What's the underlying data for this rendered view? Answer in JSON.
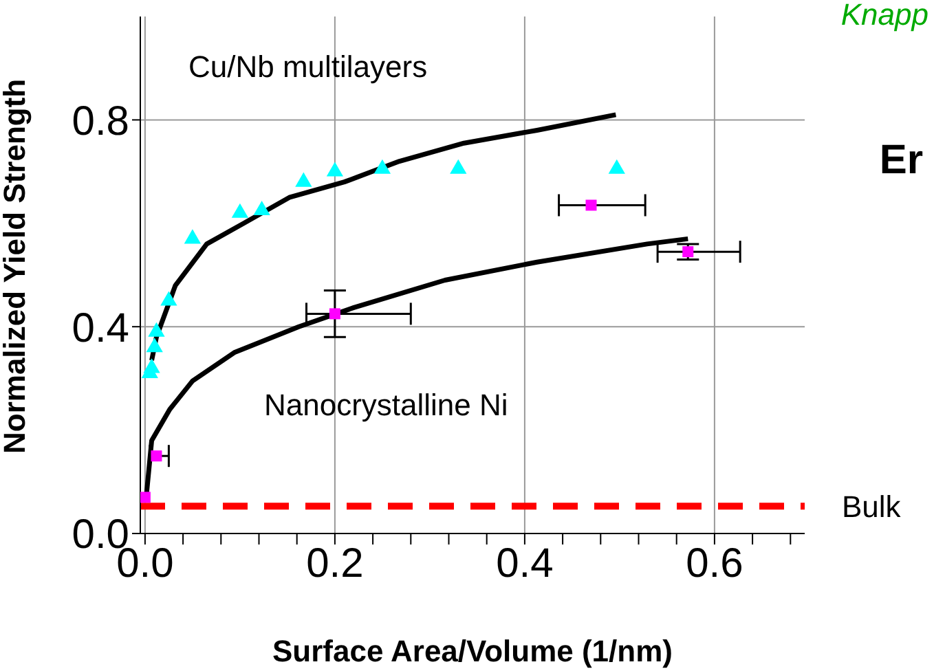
{
  "chart_data": {
    "type": "scatter",
    "xlabel": "Surface Area/Volume (1/nm)",
    "ylabel": "Normalized Yield Strength",
    "xlim": [
      -0.005,
      0.695
    ],
    "ylim": [
      0,
      1.0
    ],
    "xticks": [
      {
        "value": 0,
        "label": "0.0"
      },
      {
        "value": 0.04,
        "label": null
      },
      {
        "value": 0.08,
        "label": null
      },
      {
        "value": 0.12,
        "label": null
      },
      {
        "value": 0.16,
        "label": null
      },
      {
        "value": 0.2,
        "label": "0.2"
      },
      {
        "value": 0.24,
        "label": null
      },
      {
        "value": 0.28,
        "label": null
      },
      {
        "value": 0.32,
        "label": null
      },
      {
        "value": 0.36,
        "label": null
      },
      {
        "value": 0.4,
        "label": "0.4"
      },
      {
        "value": 0.44,
        "label": null
      },
      {
        "value": 0.48,
        "label": null
      },
      {
        "value": 0.52,
        "label": null
      },
      {
        "value": 0.56,
        "label": null
      },
      {
        "value": 0.6,
        "label": "0.6"
      },
      {
        "value": 0.64,
        "label": null
      },
      {
        "value": 0.68,
        "label": null
      }
    ],
    "yticks": [
      {
        "value": 0,
        "label": "0.0"
      },
      0.4,
      0.8
    ],
    "grid": true,
    "series": [
      {
        "type": "scatter",
        "color": "#00ffff",
        "marker": "triangle",
        "x": [
          0.005,
          0.007,
          0.01,
          0.012,
          0.025,
          0.05,
          0.1,
          0.123,
          0.167,
          0.2,
          0.25,
          0.33,
          0.497
        ],
        "values": [
          0.31,
          0.32,
          0.36,
          0.39,
          0.45,
          0.57,
          0.62,
          0.625,
          0.68,
          0.7,
          0.705,
          0.705,
          0.705
        ]
      },
      {
        "type": "scatter",
        "color": "#ff00ff",
        "marker": "square",
        "x": [
          0,
          0.012,
          0.2,
          0.47,
          0.572
        ],
        "values": [
          0.07,
          0.15,
          0.425,
          0.635,
          0.545
        ],
        "xerrors": [
          null,
          [
            0.005,
            0.025
          ],
          [
            0.17,
            0.28
          ],
          [
            0.436,
            0.527
          ],
          [
            0.54,
            0.627
          ]
        ],
        "errors": [
          null,
          null,
          [
            0.38,
            0.47
          ],
          null,
          [
            0.53,
            0.56
          ]
        ]
      },
      {
        "type": "line",
        "color": "#000000",
        "marker": "none",
        "line_style": "solid",
        "x": [
          0.007,
          0.012,
          0.032,
          0.065,
          0.104,
          0.152,
          0.21,
          0.268,
          0.336,
          0.413,
          0.496
        ],
        "values": [
          0.335,
          0.38,
          0.48,
          0.56,
          0.6,
          0.65,
          0.68,
          0.72,
          0.755,
          0.78,
          0.81
        ]
      },
      {
        "type": "line",
        "color": "#000000",
        "marker": "none",
        "line_style": "solid",
        "x": [
          0.001,
          0.007,
          0.026,
          0.05,
          0.094,
          0.162,
          0.22,
          0.316,
          0.413,
          0.529,
          0.572
        ],
        "values": [
          0.066,
          0.18,
          0.24,
          0.295,
          0.35,
          0.4,
          0.437,
          0.49,
          0.525,
          0.56,
          0.57
        ]
      }
    ],
    "ref_lines": [
      {
        "axis": "y",
        "value": 0.053,
        "label": "Bulk",
        "color": "#ff0000",
        "line_style": "dashed"
      }
    ],
    "annotations": [
      "Cu/Nb multilayers",
      "Nanocrystalline Ni",
      "Knapp",
      "Er"
    ]
  }
}
